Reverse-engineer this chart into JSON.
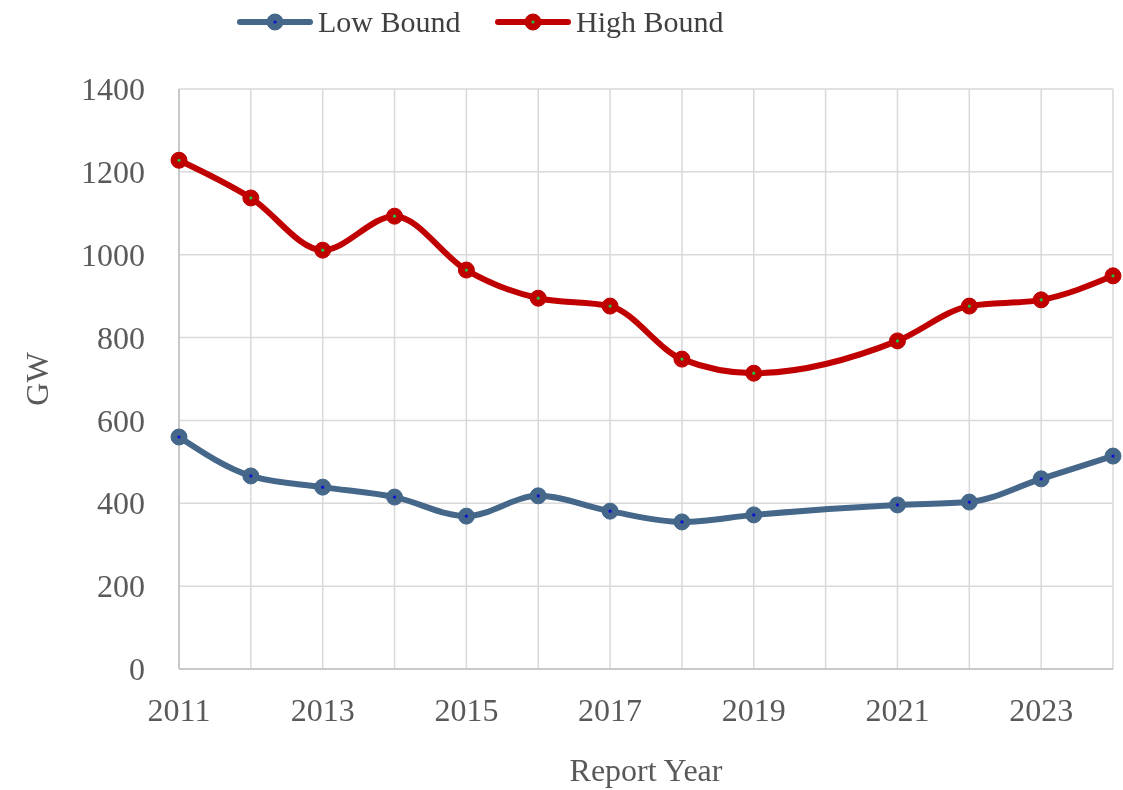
{
  "chart_data": {
    "type": "line",
    "xlabel": "Report Year",
    "ylabel": "GW",
    "xlim": [
      2011,
      2024
    ],
    "xticks": [
      2011,
      {
        "value": 2012,
        "label": null
      },
      2013,
      {
        "value": 2014,
        "label": null
      },
      2015,
      {
        "value": 2016,
        "label": null
      },
      2017,
      {
        "value": 2018,
        "label": null
      },
      2019,
      {
        "value": 2020,
        "label": null
      },
      2021,
      {
        "value": 2022,
        "label": null
      },
      2023,
      {
        "value": 2024,
        "label": null
      }
    ],
    "ylim": [
      0,
      1400
    ],
    "yticks": [
      0,
      200,
      400,
      600,
      800,
      1000,
      1200,
      1400
    ],
    "grid": true,
    "legend": "top",
    "marker": "circle",
    "line_style": "solid",
    "series": [
      {
        "name": "Low Bound",
        "color": "#44678a",
        "x": [
          2011,
          2012,
          2013,
          2014,
          2015,
          2016,
          2017,
          2018,
          2019,
          2021,
          2022,
          2023,
          2024
        ],
        "values": [
          560,
          466,
          439,
          415,
          369,
          418,
          381,
          355,
          372,
          396,
          403,
          459,
          514
        ]
      },
      {
        "name": "High Bound",
        "color": "#c00000",
        "x": [
          2011,
          2012,
          2013,
          2014,
          2015,
          2016,
          2017,
          2018,
          2019,
          2021,
          2022,
          2023,
          2024
        ],
        "values": [
          1228,
          1137,
          1011,
          1093,
          963,
          895,
          876,
          748,
          714,
          792,
          876,
          891,
          949
        ]
      }
    ]
  }
}
